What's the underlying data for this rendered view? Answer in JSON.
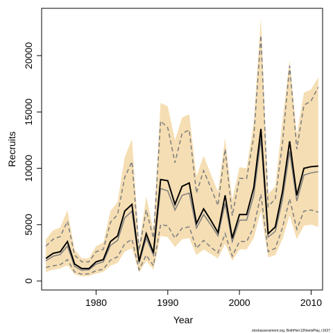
{
  "chart_data": {
    "type": "line",
    "title": "",
    "xlabel": "Year",
    "ylabel": "Recruits",
    "xlim": [
      1972.4,
      2011.6
    ],
    "ylim": [
      -800,
      24200
    ],
    "x_ticks": [
      1980,
      1990,
      2000,
      2010
    ],
    "y_ticks": [
      0,
      5000,
      10000,
      15000,
      20000
    ],
    "x": [
      1973,
      1974,
      1975,
      1976,
      1977,
      1978,
      1979,
      1980,
      1981,
      1982,
      1983,
      1984,
      1985,
      1986,
      1987,
      1988,
      1989,
      1990,
      1991,
      1992,
      1993,
      1994,
      1995,
      1996,
      1997,
      1998,
      1999,
      2000,
      2001,
      2002,
      2003,
      2004,
      2005,
      2006,
      2007,
      2008,
      2009,
      2010,
      2011
    ],
    "colors": {
      "band": "#f5deb3",
      "median": "#000000",
      "dashed": "#808080",
      "grey_line": "#808080"
    },
    "series": [
      {
        "values": [
          2000,
          2450,
          2600,
          3500,
          1500,
          1100,
          1100,
          1700,
          1900,
          3500,
          4000,
          6200,
          6800,
          1750,
          4200,
          2500,
          9000,
          8900,
          6800,
          8400,
          8700,
          5100,
          6400,
          5400,
          4300,
          7600,
          3800,
          5900,
          5900,
          8300,
          13500,
          4200,
          4800,
          7900,
          12400,
          7600,
          10000,
          10150,
          10200
        ]
      },
      {
        "values": [
          1800,
          2200,
          2350,
          3100,
          1300,
          950,
          1000,
          1500,
          1700,
          3150,
          3600,
          5600,
          6200,
          1600,
          3800,
          2300,
          8200,
          8000,
          6300,
          7600,
          7800,
          4700,
          5900,
          5000,
          4000,
          6900,
          3500,
          5400,
          5400,
          7600,
          12600,
          3900,
          4400,
          7200,
          11500,
          7100,
          9400,
          9600,
          9700
        ]
      },
      {
        "values": [
          3100,
          3700,
          3950,
          5300,
          2300,
          1700,
          1700,
          2600,
          2800,
          5200,
          5900,
          9200,
          10600,
          2700,
          6300,
          3800,
          14200,
          13600,
          10500,
          13100,
          13400,
          7800,
          9800,
          8300,
          6700,
          11700,
          5800,
          9100,
          9100,
          12800,
          21800,
          6600,
          7300,
          12200,
          19100,
          11700,
          15600,
          16000,
          17200
        ]
      },
      {
        "values": [
          1200,
          1350,
          1450,
          1900,
          800,
          600,
          650,
          900,
          1050,
          1850,
          2150,
          3300,
          3700,
          1000,
          2300,
          1350,
          5000,
          4900,
          3800,
          4700,
          4800,
          2900,
          3600,
          3000,
          2500,
          4200,
          2200,
          3500,
          3500,
          4800,
          7700,
          2600,
          2900,
          4700,
          7300,
          4600,
          6200,
          6300,
          6100
        ]
      },
      {
        "values": [
          3700,
          4500,
          4750,
          6300,
          2800,
          2000,
          2000,
          3100,
          3400,
          6200,
          7000,
          11000,
          12600,
          3200,
          7500,
          4500,
          15800,
          15500,
          12500,
          14500,
          14800,
          9300,
          11100,
          9500,
          7900,
          12700,
          7200,
          10100,
          10000,
          14100,
          23400,
          7700,
          8400,
          14200,
          19600,
          13000,
          16700,
          17000,
          18100
        ]
      },
      {
        "values": [
          800,
          1000,
          1100,
          1400,
          600,
          400,
          450,
          650,
          800,
          1350,
          1600,
          2600,
          2900,
          750,
          1800,
          1000,
          4000,
          3900,
          3000,
          3700,
          3800,
          2300,
          2800,
          2400,
          2000,
          3300,
          1800,
          2800,
          2800,
          3800,
          6200,
          2100,
          2300,
          3700,
          5800,
          3700,
          4900,
          5000,
          4800
        ]
      }
    ],
    "credit": "stockassessment.org, BothHerr12NoelsPlay, r1627"
  }
}
